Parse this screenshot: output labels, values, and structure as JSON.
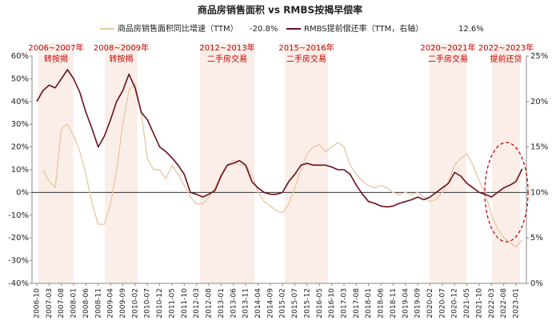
{
  "chart_data": {
    "type": "line",
    "title": "商品房销售面积 vs RMBS按揭早偿率",
    "categories": [
      "2006-10",
      null,
      "2007-03",
      null,
      "2007-08",
      null,
      "2008-01",
      null,
      "2008-06",
      null,
      "2008-11",
      null,
      "2009-04",
      null,
      "2009-09",
      null,
      "2010-02",
      null,
      "2010-07",
      null,
      "2010-12",
      null,
      "2011-05",
      null,
      "2011-10",
      null,
      "2012-03",
      null,
      "2012-08",
      null,
      "2013-01",
      null,
      "2013-06",
      null,
      "2013-11",
      null,
      "2014-04",
      null,
      "2014-09",
      null,
      "2015-02",
      null,
      "2015-07",
      null,
      "2015-12",
      null,
      "2016-05",
      null,
      "2016-10",
      null,
      "2017-03",
      null,
      "2017-08",
      null,
      "2018-01",
      null,
      "2018-06",
      null,
      "2018-11",
      null,
      "2019-04",
      null,
      "2019-09",
      null,
      "2020-02",
      null,
      "2020-07",
      null,
      "2020-12",
      null,
      "2021-05",
      null,
      "2021-10",
      null,
      "2022-03",
      null,
      "2022-08",
      null,
      "2023-01",
      null
    ],
    "series": [
      {
        "name": "商品房销售面积同比增速（TTM）",
        "legend_value": "-20.8%",
        "color": "#e8c9a8",
        "axis": "y",
        "values": [
          null,
          10,
          5,
          2,
          28,
          30,
          25,
          18,
          8,
          -5,
          -14,
          -14,
          -5,
          10,
          30,
          45,
          48,
          35,
          15,
          10,
          10,
          6,
          12,
          8,
          3,
          -2,
          -5,
          -5,
          -2,
          2,
          8,
          12,
          14,
          12,
          12,
          8,
          0,
          -4,
          -6,
          -8,
          -9,
          -5,
          2,
          10,
          17,
          20,
          21,
          18,
          20,
          22,
          20,
          12,
          8,
          5,
          3,
          2,
          3,
          2,
          0,
          -1,
          0,
          -1,
          0,
          -2,
          -4,
          -3,
          0,
          5,
          12,
          15,
          17,
          12,
          5,
          0,
          -10,
          -16,
          -20,
          -22,
          -24,
          -20.8
        ]
      },
      {
        "name": "RMBS提前偿还率（TTM，右轴）",
        "legend_value": "12.6%",
        "color": "#6b0f1a",
        "axis": "y2",
        "values": [
          20,
          21.2,
          21.8,
          21.5,
          22.5,
          23.5,
          22.5,
          21,
          18.8,
          17,
          15,
          16.2,
          18,
          20,
          21.2,
          23,
          21.5,
          18.8,
          18,
          16.5,
          15,
          14.5,
          13.8,
          13,
          12,
          10,
          9.8,
          9.5,
          9.8,
          10.2,
          11.8,
          13,
          13.2,
          13.5,
          13,
          11.2,
          10.5,
          10,
          9.8,
          9.8,
          10,
          11.2,
          12,
          13,
          13.2,
          13,
          13,
          13,
          12.8,
          12.5,
          12.5,
          12,
          10.8,
          9.8,
          9,
          8.8,
          8.5,
          8.4,
          8.5,
          8.8,
          9,
          9.2,
          9.5,
          9.2,
          9.5,
          10,
          10.5,
          11,
          12.2,
          11.8,
          11,
          10.5,
          10,
          9.8,
          9.5,
          10,
          10.5,
          10.8,
          11.2,
          12.6
        ]
      }
    ],
    "ylim": [
      -40,
      60
    ],
    "yticks": [
      {
        "value": -40,
        "label": "-40%"
      },
      {
        "value": -30,
        "label": "-30%"
      },
      {
        "value": -20,
        "label": "-20%"
      },
      {
        "value": -10,
        "label": "-10%"
      },
      {
        "value": 0,
        "label": "0%"
      },
      {
        "value": 10,
        "label": "10%"
      },
      {
        "value": 20,
        "label": "20%"
      },
      {
        "value": 30,
        "label": "30%"
      },
      {
        "value": 40,
        "label": "40%"
      },
      {
        "value": 50,
        "label": "50%"
      },
      {
        "value": 60,
        "label": "60%"
      }
    ],
    "y2lim": [
      0,
      25
    ],
    "y2ticks": [
      {
        "value": 0,
        "label": "0%"
      },
      {
        "value": 5,
        "label": "5%"
      },
      {
        "value": 10,
        "label": "10%"
      },
      {
        "value": 15,
        "label": "15%"
      },
      {
        "value": 20,
        "label": "20%"
      },
      {
        "value": 25,
        "label": "25%"
      }
    ],
    "annotations": [
      {
        "period": "2006~2007年",
        "text": "转按揭"
      },
      {
        "period": "2008~2009年",
        "text": "转按揭"
      },
      {
        "period": "2012~2013年",
        "text": "二手房交易"
      },
      {
        "period": "2015~2016年",
        "text": "二手房交易"
      },
      {
        "period": "2020~2021年",
        "text": "二手房交易"
      },
      {
        "period": "2022~2023年",
        "text": "提前还贷"
      }
    ],
    "annotation_color": "#c00000"
  }
}
